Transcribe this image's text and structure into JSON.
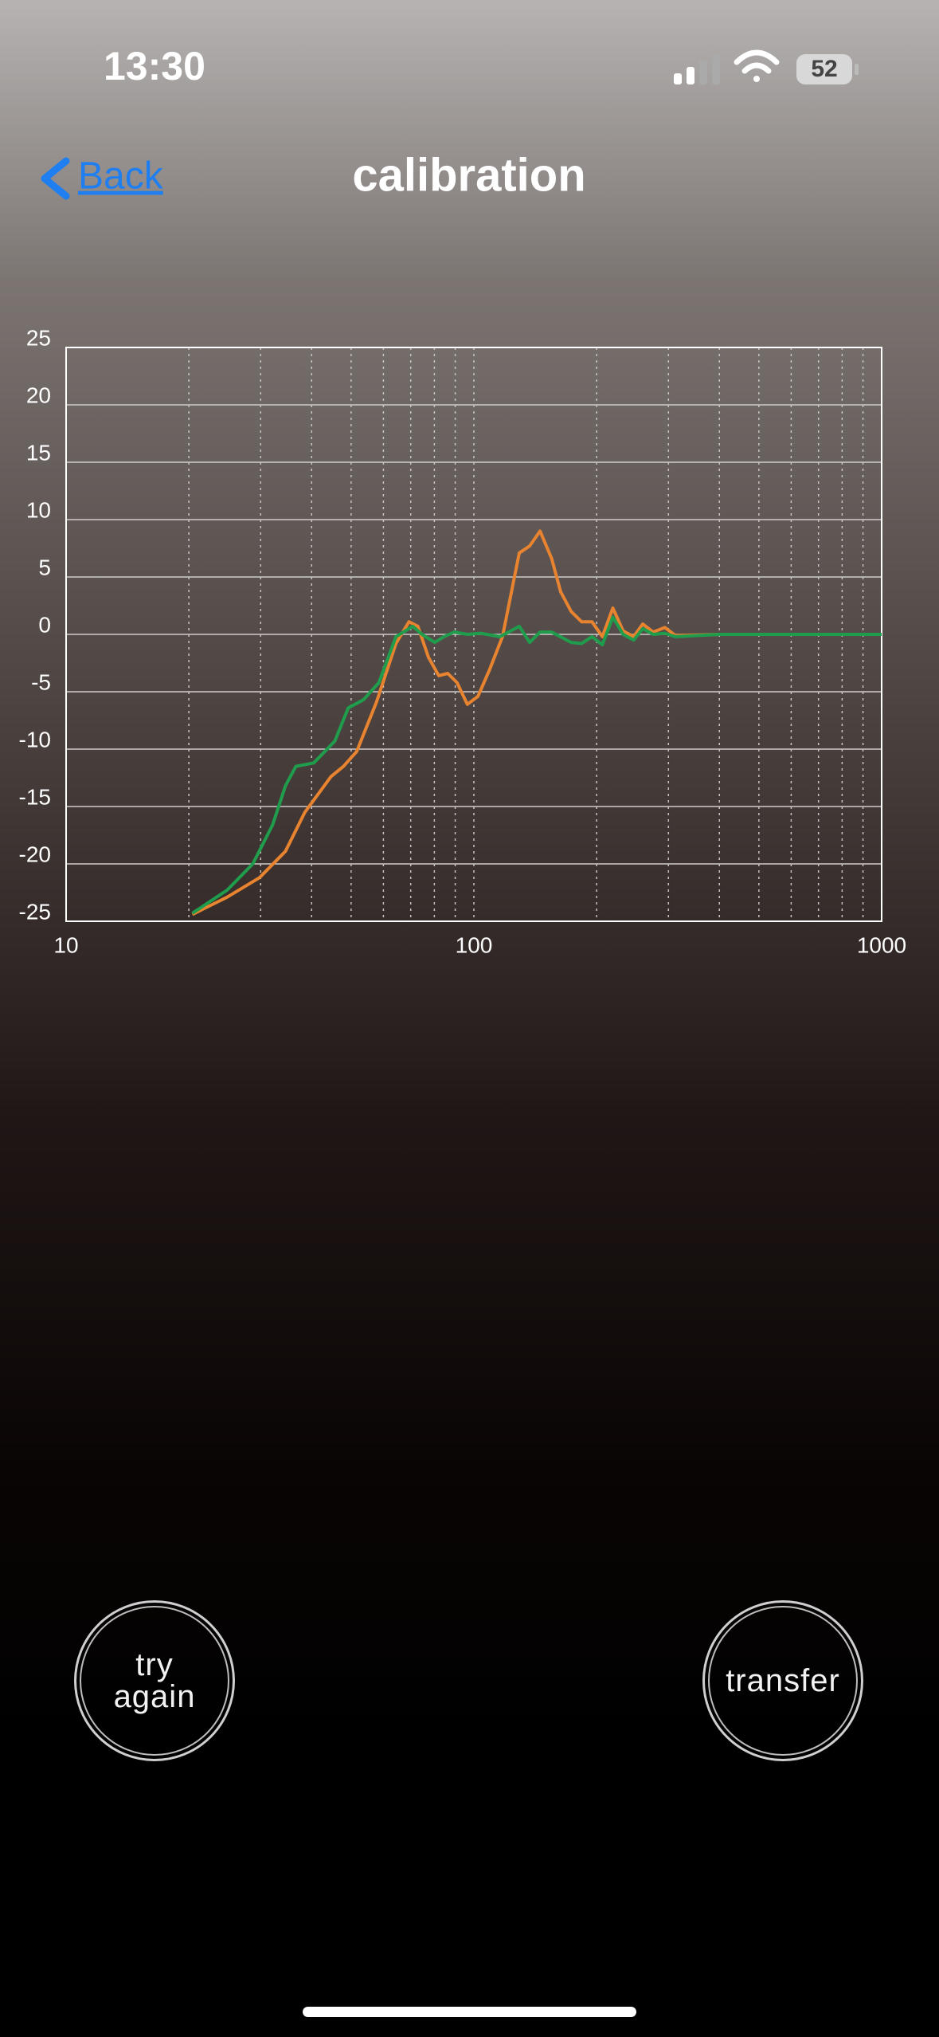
{
  "status_bar": {
    "time": "13:30",
    "battery": 52
  },
  "nav": {
    "back": "Back",
    "title": "calibration"
  },
  "chart_data": {
    "type": "line",
    "xscale": "log",
    "grid": true,
    "xlim": [
      10,
      1000
    ],
    "xticks": [
      10,
      100,
      1000
    ],
    "ylim": [
      -25,
      25
    ],
    "yticks": [
      -25,
      -20,
      -15,
      -10,
      -5,
      0,
      5,
      10,
      15,
      20,
      25
    ],
    "series": [
      {
        "color": "#e8832f",
        "x": [
          20.4,
          24.8,
          29.8,
          34.5,
          38.5,
          44.6,
          47.9,
          51.6,
          57.7,
          64.4,
          69.3,
          72.9,
          77.4,
          82,
          86.3,
          90.9,
          96.4,
          102.3,
          109.2,
          117.5,
          129.2,
          137,
          145.3,
          155.2,
          163.3,
          173.2,
          183.7,
          194.8,
          206.6,
          219.2,
          232.3,
          246.6,
          259.4,
          275.2,
          294,
          311.8,
          400,
          600,
          1000
        ],
        "values": [
          -24.4,
          -22.9,
          -21.2,
          -18.9,
          -15.5,
          -12.4,
          -11.5,
          -10.2,
          -5.9,
          -0.8,
          1.1,
          0.7,
          -2,
          -3.6,
          -3.4,
          -4.2,
          -6.1,
          -5.4,
          -3.1,
          -0.2,
          7.1,
          7.7,
          9,
          6.6,
          3.7,
          2,
          1.1,
          1.1,
          -0.2,
          2.3,
          0.3,
          -0.2,
          0.9,
          0.2,
          0.6,
          -0.1,
          0,
          0,
          0
        ]
      },
      {
        "color": "#1f9d4c",
        "x": [
          20.4,
          24.8,
          28.7,
          32.1,
          34.5,
          36.6,
          40.5,
          45.6,
          49.2,
          53.6,
          58.5,
          64.4,
          70.8,
          74.6,
          80.2,
          84.4,
          89.5,
          96.4,
          103.9,
          115.8,
          129.2,
          137,
          145.3,
          155.2,
          173.2,
          183.7,
          194.8,
          206.6,
          219.2,
          232.3,
          246.6,
          259.4,
          275.2,
          294,
          311.8,
          400,
          600,
          1000
        ],
        "values": [
          -24.3,
          -22.3,
          -20,
          -16.6,
          -13.2,
          -11.5,
          -11.2,
          -9.3,
          -6.4,
          -5.7,
          -4.2,
          -0.2,
          0.7,
          0,
          -0.7,
          -0.2,
          0.2,
          0,
          0.1,
          -0.2,
          0.7,
          -0.7,
          0.2,
          0.2,
          -0.7,
          -0.8,
          -0.2,
          -0.9,
          1.5,
          0,
          -0.5,
          0.5,
          0,
          0.1,
          -0.2,
          0,
          0,
          0
        ]
      }
    ]
  },
  "buttons": [
    "try again",
    "transfer"
  ]
}
